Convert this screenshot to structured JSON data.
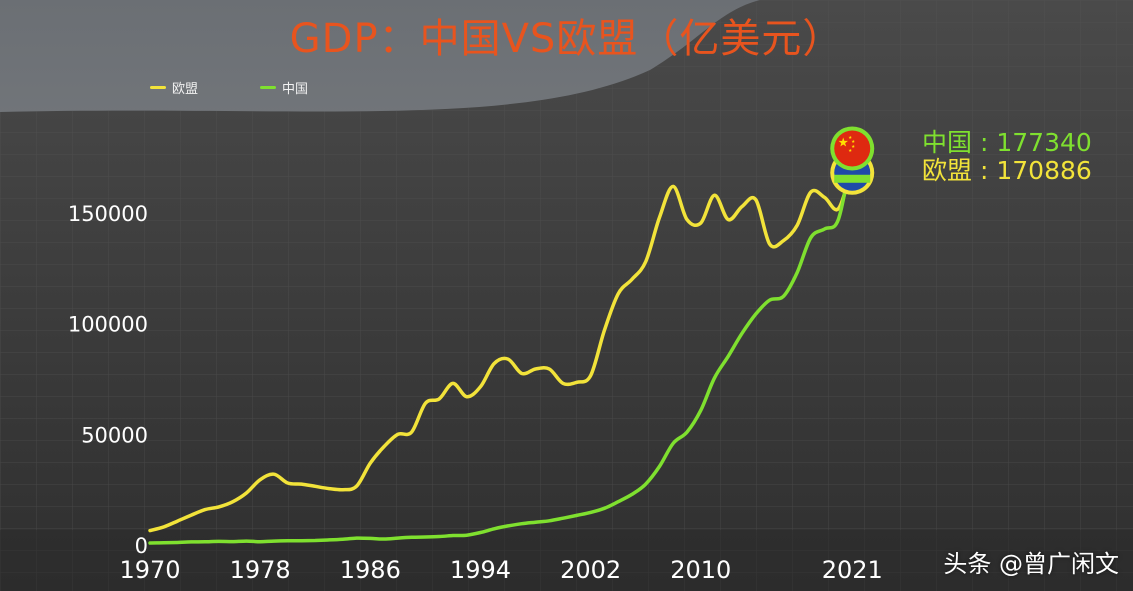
{
  "title": "GDP：中国VS欧盟（亿美元）",
  "legend": {
    "eu": "欧盟",
    "china": "中国"
  },
  "readout": {
    "china_label": "中国",
    "china_value": "177340",
    "eu_label": "欧盟",
    "eu_value": "170886",
    "separator": ":"
  },
  "watermark": "头条 @曾广闲文",
  "colors": {
    "eu": "#f2e33a",
    "china": "#7fe02f",
    "title": "#e8541e"
  },
  "icons": [
    "china-flag-icon",
    "eu-flag-icon"
  ],
  "chart_data": {
    "type": "line",
    "title": "GDP：中国VS欧盟（亿美元）",
    "xlabel": "",
    "ylabel": "",
    "xlim": [
      1970,
      2022
    ],
    "ylim": [
      0,
      180000
    ],
    "x_ticks": [
      "1970",
      "1978",
      "1986",
      "1994",
      "2002",
      "2010",
      "2021"
    ],
    "y_ticks": [
      "0",
      "50000",
      "100000",
      "150000"
    ],
    "grid": false,
    "legend_position": "top-left",
    "x": [
      1970,
      1971,
      1972,
      1973,
      1974,
      1975,
      1976,
      1977,
      1978,
      1979,
      1980,
      1981,
      1982,
      1983,
      1984,
      1985,
      1986,
      1987,
      1988,
      1989,
      1990,
      1991,
      1992,
      1993,
      1994,
      1995,
      1996,
      1997,
      1998,
      1999,
      2000,
      2001,
      2002,
      2003,
      2004,
      2005,
      2006,
      2007,
      2008,
      2009,
      2010,
      2011,
      2012,
      2013,
      2014,
      2015,
      2016,
      2017,
      2018,
      2019,
      2020,
      2021
    ],
    "series": [
      {
        "name": "欧盟",
        "values": [
          6500,
          8200,
          10800,
          13500,
          16000,
          17200,
          19500,
          23500,
          29500,
          32000,
          28000,
          27500,
          26500,
          25500,
          25000,
          26500,
          37000,
          44500,
          50000,
          51000,
          64000,
          66000,
          73000,
          67000,
          71500,
          82000,
          84000,
          77500,
          79500,
          79500,
          73000,
          73500,
          76500,
          97000,
          113500,
          120000,
          128000,
          148000,
          162000,
          147000,
          145500,
          158000,
          147000,
          153000,
          156000,
          136000,
          137500,
          144500,
          159500,
          157000,
          152000,
          170886
        ]
      },
      {
        "name": "中国",
        "values": [
          920,
          990,
          1140,
          1390,
          1440,
          1630,
          1540,
          1750,
          1500,
          1780,
          1910,
          1950,
          2050,
          2300,
          2600,
          3100,
          3000,
          2700,
          3120,
          3480,
          3610,
          3830,
          4270,
          4450,
          5640,
          7340,
          8630,
          9620,
          10290,
          10940,
          12110,
          13390,
          14710,
          16600,
          19550,
          22860,
          27520,
          35500,
          45940,
          51020,
          60870,
          75510,
          85320,
          95700,
          104380,
          110620,
          112330,
          123100,
          138950,
          142800,
          147230,
          177340
        ]
      }
    ]
  }
}
